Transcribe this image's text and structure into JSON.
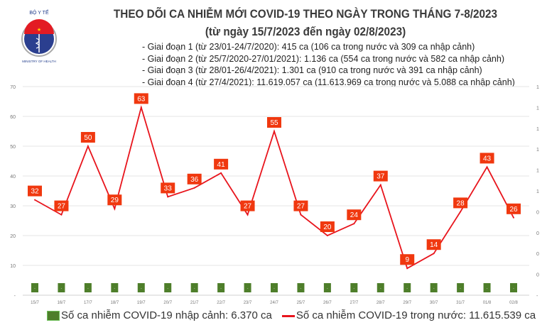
{
  "header": {
    "title": "THEO DÕI CA NHIỄM MỚI COVID-19 THEO NGÀY TRONG THÁNG 7-8/2023",
    "subtitle": "(từ ngày 15/7/2023 đến ngày 02/8/2023)",
    "logo_text": [
      "BỘ Y TẾ",
      "MINISTRY OF HEALTH"
    ],
    "notes": [
      "- Giai đoạn 1 (từ 23/01-24/7/2020): 415 ca (106 ca trong nước và 309 ca nhập cảnh)",
      "- Giai đoạn 2 (từ 25/7/2020-27/01/2021): 1.136 ca (554 ca trong nước và 582 ca nhập cảnh)",
      "- Giai đoạn 3 (từ 28/01-26/4/2021): 1.301 ca (910 ca trong nước và 391 ca nhập cảnh)",
      "- Giai đoạn 4 (từ 27/4/2021): 11.619.057 ca (11.613.969 ca trong nước và 5.088 ca nhập cảnh)"
    ]
  },
  "colors": {
    "line": "#e8141c",
    "label_bg": "#f0380f",
    "bar": "#4e7e2a"
  },
  "chart_data": {
    "type": "bar+line",
    "categories": [
      "15/7",
      "16/7",
      "17/7",
      "18/7",
      "19/7",
      "20/7",
      "21/7",
      "22/7",
      "23/7",
      "24/7",
      "25/7",
      "26/7",
      "27/7",
      "28/7",
      "29/7",
      "30/7",
      "31/7",
      "01/8",
      "02/8"
    ],
    "series": [
      {
        "name": "Số ca nhiễm COVID-19 nhập cảnh: 6.370 ca",
        "type": "bar",
        "axis": "right",
        "values": [
          0,
          0,
          0,
          0,
          0,
          0,
          0,
          0,
          0,
          0,
          0,
          0,
          0,
          0,
          0,
          0,
          0,
          0,
          0
        ],
        "data_labels": "-"
      },
      {
        "name": "Số ca nhiễm COVID-19 trong nước: 11.615.539 ca",
        "type": "line",
        "axis": "left",
        "values": [
          32,
          27,
          50,
          29,
          63,
          33,
          36,
          41,
          27,
          55,
          27,
          20,
          24,
          37,
          9,
          14,
          28,
          43,
          26
        ]
      }
    ],
    "left_axis": {
      "ylim": [
        0,
        70
      ],
      "ticks": [
        "-",
        "10",
        "20",
        "30",
        "40",
        "50",
        "60",
        "70"
      ]
    },
    "right_axis": {
      "ticks": [
        "-",
        "0",
        "0",
        "0",
        "0",
        "1",
        "1",
        "1",
        "1",
        "1",
        "1"
      ]
    },
    "grid": true,
    "legend": "bottom"
  }
}
